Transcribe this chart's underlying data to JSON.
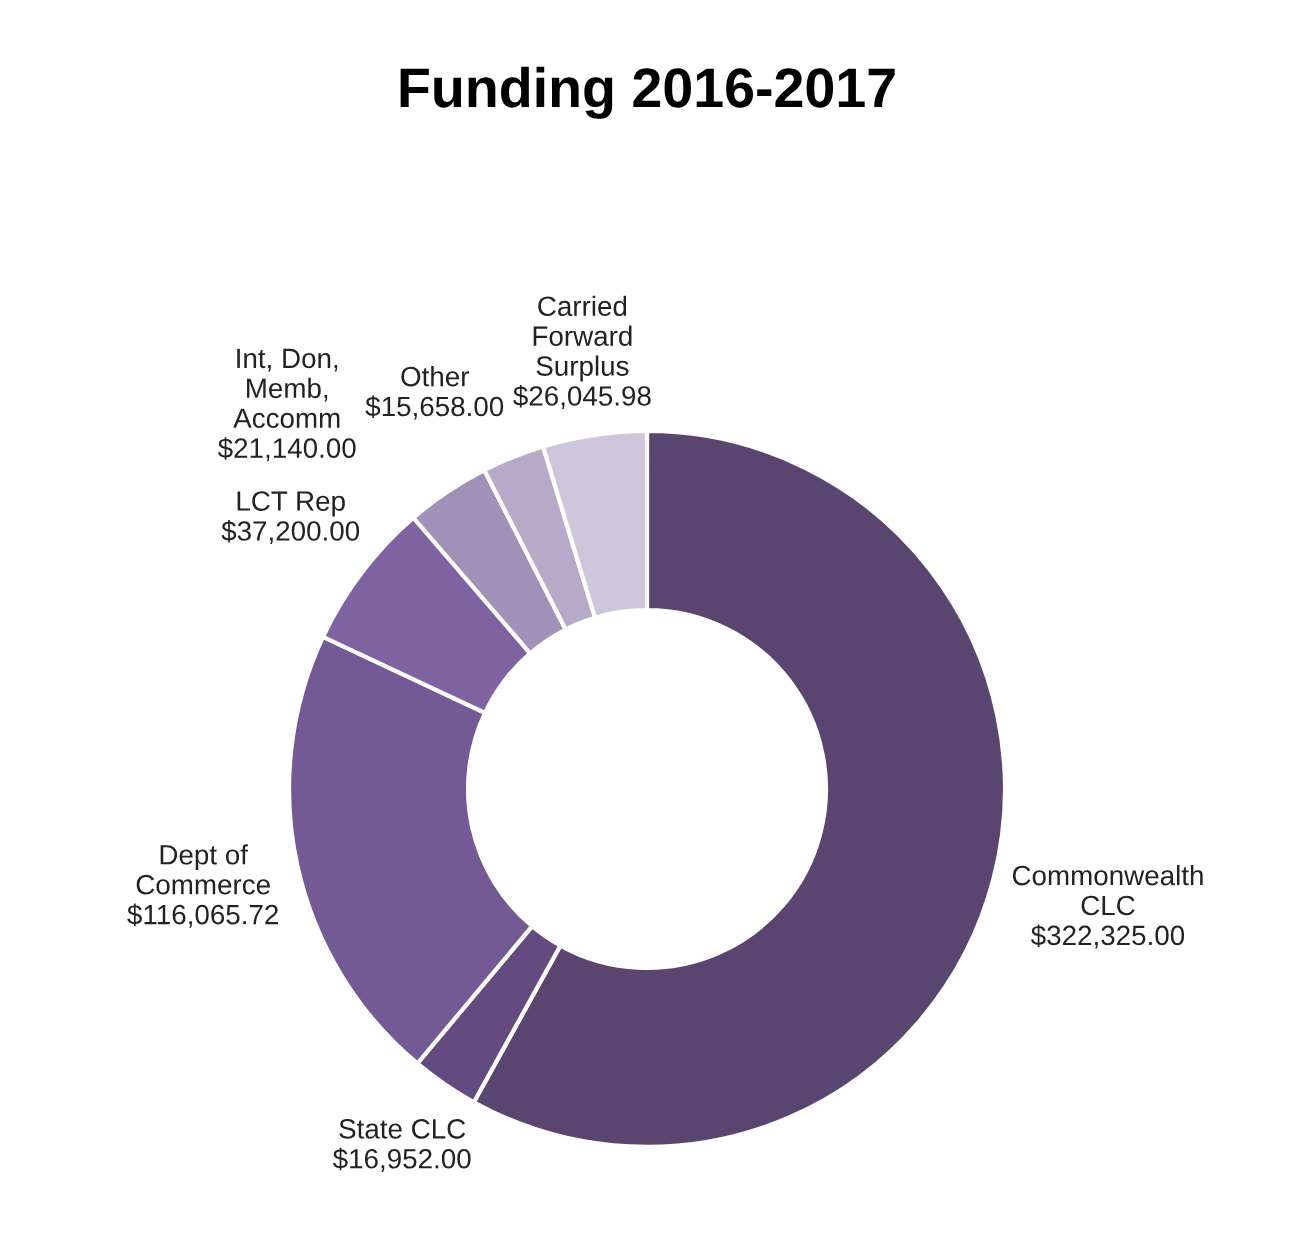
{
  "chart_data": {
    "type": "donut",
    "title": "Funding 2016-2017",
    "categories": [
      "Commonwealth\nCLC",
      "State CLC",
      "Dept of\nCommerce",
      "LCT Rep",
      "Int, Don,\nMemb,\nAccomm",
      "Other",
      "Carried\nForward\nSurplus"
    ],
    "values": [
      322325.0,
      16952.0,
      116065.72,
      37200.0,
      21140.0,
      15658.0,
      26045.98
    ],
    "value_labels": [
      "$322,325.00",
      "$16,952.00",
      "$116,065.72",
      "$37,200.00",
      "$21,140.00",
      "$15,658.00",
      "$26,045.98"
    ],
    "colors": [
      "#5a4570",
      "#634b80",
      "#735a94",
      "#7e63a0",
      "#a190b8",
      "#b6aac8",
      "#cec6db"
    ],
    "legend": false
  }
}
